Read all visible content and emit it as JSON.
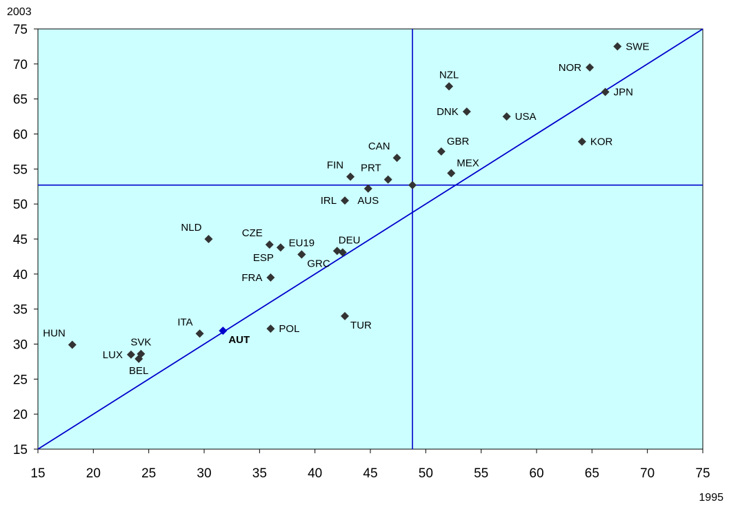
{
  "chart_data": {
    "type": "scatter",
    "xlabel": "1995",
    "ylabel": "2003",
    "xlim": [
      15,
      75
    ],
    "ylim": [
      15,
      75
    ],
    "xticks": [
      15,
      20,
      25,
      30,
      35,
      40,
      45,
      50,
      55,
      60,
      65,
      70,
      75
    ],
    "yticks": [
      15,
      20,
      25,
      30,
      35,
      40,
      45,
      50,
      55,
      60,
      65,
      70,
      75
    ],
    "grid": false,
    "background_color": "#ccffff",
    "marker_color": "#333333",
    "highlight_color": "#0000cc",
    "line_color": "#0000cc",
    "diagonal": [
      [
        15,
        15
      ],
      [
        75,
        75
      ]
    ],
    "reference_lines": {
      "x": 48.8,
      "y": 52.7
    },
    "points": [
      {
        "label": "SWE",
        "x": 67.3,
        "y": 72.5,
        "pos": "right"
      },
      {
        "label": "NOR",
        "x": 64.8,
        "y": 69.5,
        "pos": "left"
      },
      {
        "label": "JPN",
        "x": 66.2,
        "y": 66.0,
        "pos": "right"
      },
      {
        "label": "NZL",
        "x": 52.1,
        "y": 66.8,
        "pos": "above"
      },
      {
        "label": "DNK",
        "x": 53.7,
        "y": 63.2,
        "pos": "left"
      },
      {
        "label": "USA",
        "x": 57.3,
        "y": 62.5,
        "pos": "right"
      },
      {
        "label": "KOR",
        "x": 64.1,
        "y": 58.9,
        "pos": "right"
      },
      {
        "label": "GBR",
        "x": 51.4,
        "y": 57.5,
        "pos": "above-right"
      },
      {
        "label": "CAN",
        "x": 47.4,
        "y": 56.6,
        "pos": "above-left"
      },
      {
        "label": "MEX",
        "x": 52.3,
        "y": 54.4,
        "pos": "above-right"
      },
      {
        "label": "FIN",
        "x": 43.2,
        "y": 53.9,
        "pos": "above-left"
      },
      {
        "label": "PRT",
        "x": 46.6,
        "y": 53.5,
        "pos": "above-left"
      },
      {
        "label": "",
        "x": 48.8,
        "y": 52.7,
        "pos": "none"
      },
      {
        "label": "AUS",
        "x": 44.8,
        "y": 52.2,
        "pos": "below"
      },
      {
        "label": "IRL",
        "x": 42.7,
        "y": 50.5,
        "pos": "left"
      },
      {
        "label": "NLD",
        "x": 30.4,
        "y": 45.0,
        "pos": "above-left"
      },
      {
        "label": "CZE",
        "x": 35.9,
        "y": 44.2,
        "pos": "above-left"
      },
      {
        "label": "ESP",
        "x": 36.9,
        "y": 43.8,
        "pos": "below-left"
      },
      {
        "label": "EU19",
        "x": 38.8,
        "y": 42.8,
        "pos": "above"
      },
      {
        "label": "GRC",
        "x": 38.8,
        "y": 42.8,
        "pos": "below-right"
      },
      {
        "label": "DEU",
        "x": 42.0,
        "y": 43.3,
        "pos": "none"
      },
      {
        "label": "",
        "x": 42.5,
        "y": 43.1,
        "pos": "none"
      },
      {
        "label": "FRA",
        "x": 36.0,
        "y": 39.5,
        "pos": "left"
      },
      {
        "label": "TUR",
        "x": 42.7,
        "y": 34.0,
        "pos": "below-right"
      },
      {
        "label": "POL",
        "x": 36.0,
        "y": 32.2,
        "pos": "right"
      },
      {
        "label": "AUT",
        "x": 31.7,
        "y": 31.9,
        "pos": "below-right",
        "highlight": true
      },
      {
        "label": "ITA",
        "x": 29.6,
        "y": 31.5,
        "pos": "above-left"
      },
      {
        "label": "HUN",
        "x": 18.1,
        "y": 29.9,
        "pos": "above-left"
      },
      {
        "label": "SVK",
        "x": 24.3,
        "y": 28.6,
        "pos": "above"
      },
      {
        "label": "LUX",
        "x": 23.4,
        "y": 28.5,
        "pos": "left"
      },
      {
        "label": "BEL",
        "x": 24.1,
        "y": 27.9,
        "pos": "below"
      }
    ]
  }
}
